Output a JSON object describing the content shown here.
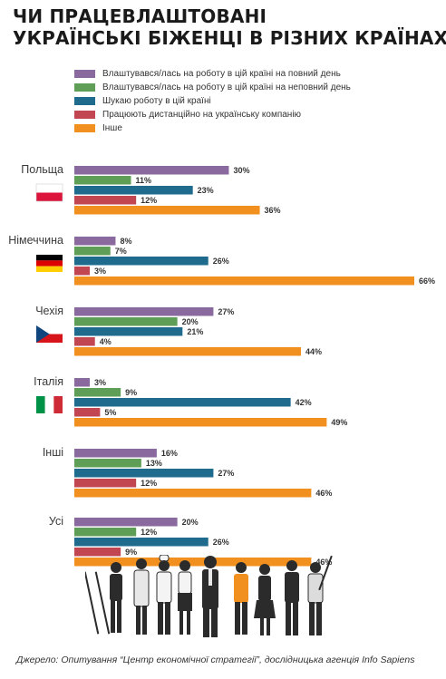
{
  "title": {
    "line1": "ЧИ ПРАЦЕВЛАШТОВАНІ",
    "line2": "УКРАЇНСЬКІ БІЖЕНЦІ В РІЗНИХ КРАЇНАХ?"
  },
  "colors": {
    "full_time": "#8a6a9e",
    "part_time": "#5e9e56",
    "looking": "#1f6b8e",
    "remote": "#c24651",
    "other": "#f2901f"
  },
  "source": "Джерело: Опитування “Центр економічної стратегії”, дослідницька агенція Info Sapiens",
  "chart_data": {
    "type": "bar",
    "orientation": "horizontal",
    "title": "ЧИ ПРАЦЕВЛАШТОВАНІ УКРАЇНСЬКІ БІЖЕНЦІ В РІЗНИХ КРАЇНАХ?",
    "categories": [
      "Польща",
      "Німеччина",
      "Чехія",
      "Італія",
      "Інші",
      "Усі"
    ],
    "flags": [
      "poland-flag",
      "germany-flag",
      "czech-flag",
      "italy-flag",
      "",
      ""
    ],
    "unit": "%",
    "xlim": [
      0,
      66
    ],
    "grid": false,
    "legend_position": "top",
    "series": [
      {
        "name": "Влаштувався/лась на роботу в цій країні на повний день",
        "color_key": "full_time",
        "values": [
          30,
          8,
          27,
          3,
          16,
          20
        ]
      },
      {
        "name": "Влаштувався/лась на роботу в цій країні на неповний день",
        "color_key": "part_time",
        "values": [
          11,
          7,
          20,
          9,
          13,
          12
        ]
      },
      {
        "name": "Шукаю роботу в цій країні",
        "color_key": "looking",
        "values": [
          23,
          26,
          21,
          42,
          27,
          26
        ]
      },
      {
        "name": "Працюють дистанційно на українську компанію",
        "color_key": "remote",
        "values": [
          12,
          3,
          4,
          5,
          12,
          9
        ]
      },
      {
        "name": "Інше",
        "color_key": "other",
        "values": [
          36,
          66,
          44,
          49,
          46,
          46
        ]
      }
    ]
  }
}
